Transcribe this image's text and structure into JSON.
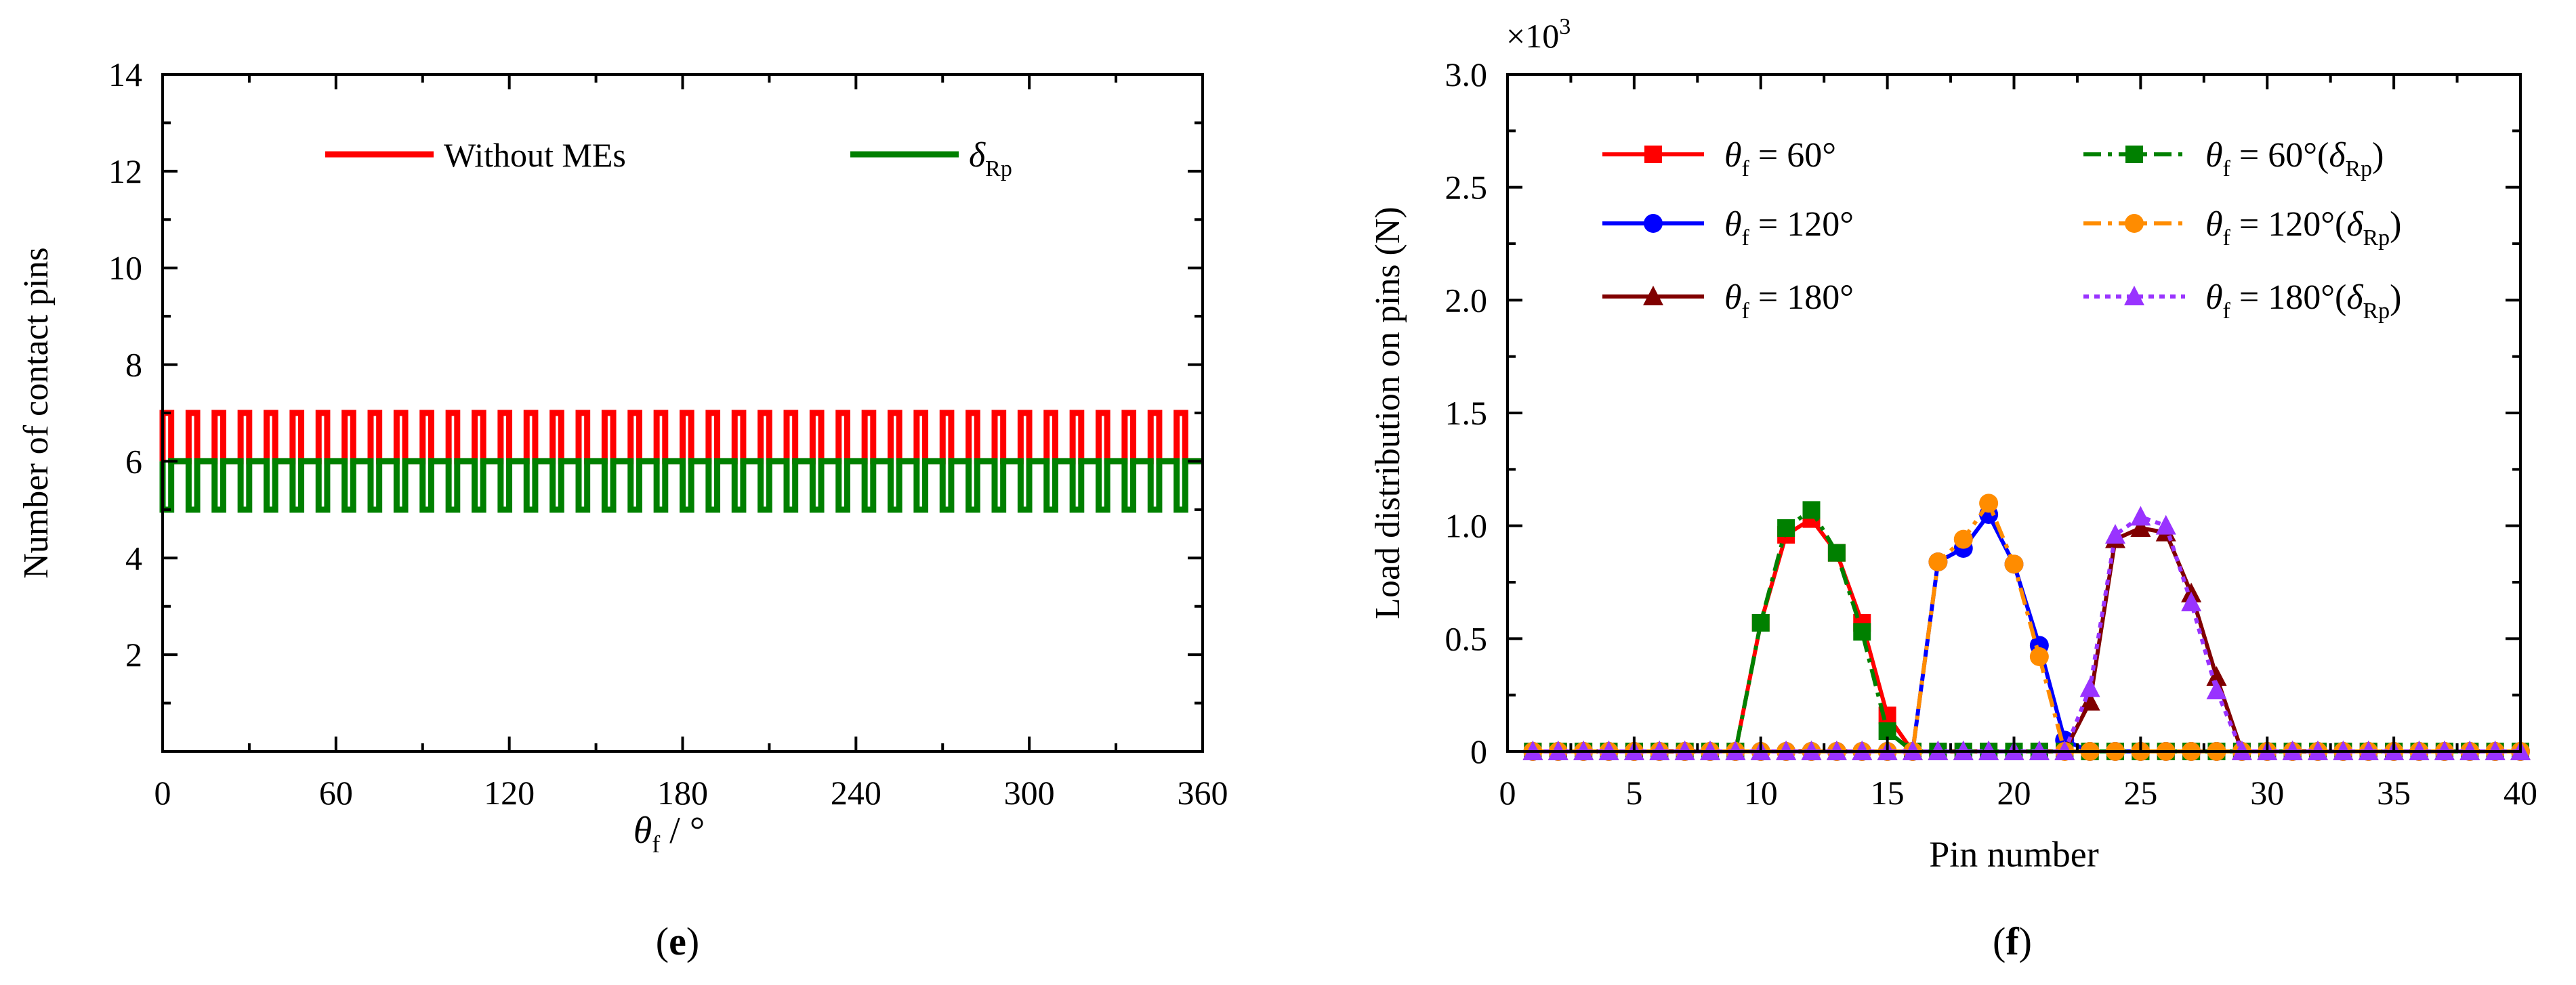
{
  "chart_data": [
    {
      "id": "e",
      "type": "line",
      "panel_label": "e",
      "xlabel_symbol": "θ",
      "xlabel_sub": "f",
      "xlabel_unit": "/ °",
      "ylabel": "Number of contact pins",
      "xlim": [
        0,
        360
      ],
      "ylim": [
        0,
        14
      ],
      "xticks": [
        0,
        60,
        120,
        180,
        240,
        300,
        360
      ],
      "yticks": [
        2,
        4,
        6,
        8,
        10,
        12,
        14
      ],
      "grid": false,
      "legend_position": "top",
      "series": [
        {
          "name": "Without MEs",
          "color": "#ff0000",
          "low": 6,
          "high": 7,
          "period": 9,
          "high_fraction": 0.33
        },
        {
          "name": "δ_Rp",
          "legend_symbol": "δ",
          "legend_sub": "Rp",
          "color": "#008000",
          "low": 5,
          "high": 6,
          "period": 9,
          "low_fraction": 0.33
        }
      ]
    },
    {
      "id": "f",
      "type": "line",
      "panel_label": "f",
      "xlabel": "Pin number",
      "ylabel": "Load distribution on pins (N)",
      "y_multiplier": "×10",
      "y_multiplier_exp": "3",
      "xlim": [
        0,
        40
      ],
      "ylim": [
        0,
        3.0
      ],
      "xticks": [
        0,
        5,
        10,
        15,
        20,
        25,
        30,
        35,
        40
      ],
      "yticks": [
        "0",
        "0.5",
        "1.0",
        "1.5",
        "2.0",
        "2.5",
        "3.0"
      ],
      "grid": false,
      "legend_position": "top",
      "x": [
        1,
        2,
        3,
        4,
        5,
        6,
        7,
        8,
        9,
        10,
        11,
        12,
        13,
        14,
        15,
        16,
        17,
        18,
        19,
        20,
        21,
        22,
        23,
        24,
        25,
        26,
        27,
        28,
        29,
        30,
        31,
        32,
        33,
        34,
        35,
        36,
        37,
        38,
        39,
        40
      ],
      "series": [
        {
          "name": "θf = 60°",
          "label_symbol": "θ",
          "label_sub": "f",
          "label_rest": " = 60°",
          "color": "#ff0000",
          "marker": "square",
          "dash": "solid",
          "values": [
            0,
            0,
            0,
            0,
            0,
            0,
            0,
            0,
            0,
            0.57,
            0.96,
            1.03,
            0.88,
            0.57,
            0.16,
            0,
            0,
            0,
            0,
            0,
            0,
            0,
            0,
            0,
            0,
            0,
            0,
            0,
            0,
            0,
            0,
            0,
            0,
            0,
            0,
            0,
            0,
            0,
            0,
            0
          ]
        },
        {
          "name": "θf = 120°",
          "label_symbol": "θ",
          "label_sub": "f",
          "label_rest": " = 120°",
          "color": "#0000ff",
          "marker": "circle",
          "dash": "solid",
          "values": [
            0,
            0,
            0,
            0,
            0,
            0,
            0,
            0,
            0,
            0,
            0,
            0,
            0,
            0,
            0,
            0,
            0.84,
            0.9,
            1.05,
            0.83,
            0.47,
            0.05,
            0,
            0,
            0,
            0,
            0,
            0,
            0,
            0,
            0,
            0,
            0,
            0,
            0,
            0,
            0,
            0,
            0,
            0
          ]
        },
        {
          "name": "θf = 180°",
          "label_symbol": "θ",
          "label_sub": "f",
          "label_rest": " = 180°",
          "color": "#800000",
          "marker": "triangle",
          "dash": "solid",
          "values": [
            0,
            0,
            0,
            0,
            0,
            0,
            0,
            0,
            0,
            0,
            0,
            0,
            0,
            0,
            0,
            0,
            0,
            0,
            0,
            0,
            0,
            0,
            0.22,
            0.94,
            0.99,
            0.97,
            0.7,
            0.33,
            0,
            0,
            0,
            0,
            0,
            0,
            0,
            0,
            0,
            0,
            0,
            0
          ]
        },
        {
          "name": "θf = 60°(δRp)",
          "label_symbol": "θ",
          "label_sub": "f",
          "label_rest": " = 60°(",
          "label_sym2": "δ",
          "label_sub2": "Rp",
          "label_end": ")",
          "color": "#008000",
          "marker": "square",
          "dash": "dashdot",
          "values": [
            0,
            0,
            0,
            0,
            0,
            0,
            0,
            0,
            0,
            0.57,
            0.99,
            1.07,
            0.88,
            0.53,
            0.09,
            0,
            0,
            0,
            0,
            0,
            0,
            0,
            0,
            0,
            0,
            0,
            0,
            0,
            0,
            0,
            0,
            0,
            0,
            0,
            0,
            0,
            0,
            0,
            0,
            0
          ]
        },
        {
          "name": "θf = 120°(δRp)",
          "label_symbol": "θ",
          "label_sub": "f",
          "label_rest": " = 120°(",
          "label_sym2": "δ",
          "label_sub2": "Rp",
          "label_end": ")",
          "color": "#ff8c00",
          "marker": "circle",
          "dash": "dashdot",
          "values": [
            0,
            0,
            0,
            0,
            0,
            0,
            0,
            0,
            0,
            0,
            0,
            0,
            0,
            0,
            0,
            0,
            0.84,
            0.94,
            1.1,
            0.83,
            0.42,
            0,
            0,
            0,
            0,
            0,
            0,
            0,
            0,
            0,
            0,
            0,
            0,
            0,
            0,
            0,
            0,
            0,
            0,
            0
          ]
        },
        {
          "name": "θf = 180°(δRp)",
          "label_symbol": "θ",
          "label_sub": "f",
          "label_rest": " = 180°(",
          "label_sym2": "δ",
          "label_sub2": "Rp",
          "label_end": ")",
          "color": "#9933ff",
          "marker": "triangle",
          "dash": "dotted",
          "values": [
            0,
            0,
            0,
            0,
            0,
            0,
            0,
            0,
            0,
            0,
            0,
            0,
            0,
            0,
            0,
            0,
            0,
            0,
            0,
            0,
            0,
            0,
            0.28,
            0.96,
            1.04,
            1.0,
            0.66,
            0.27,
            0,
            0,
            0,
            0,
            0,
            0,
            0,
            0,
            0,
            0,
            0,
            0
          ]
        }
      ]
    }
  ]
}
